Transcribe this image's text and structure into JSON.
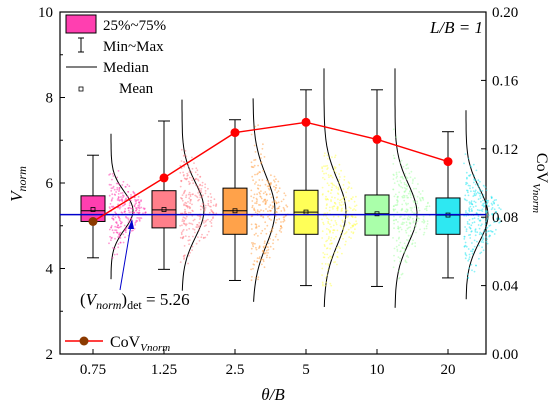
{
  "chart_data": {
    "type": "box",
    "xlabel": "θ/B",
    "ylabel": "V_norm",
    "ylabel_right": "CoV_Vnorm",
    "categories": [
      "0.75",
      "1.25",
      "2.5",
      "5",
      "10",
      "20"
    ],
    "ylim": [
      2,
      10
    ],
    "yticks": [
      2,
      4,
      6,
      8,
      10
    ],
    "ylim_right": [
      0.0,
      0.2
    ],
    "yticks_right": [
      "0.00",
      "0.04",
      "0.08",
      "0.12",
      "0.16",
      "0.20"
    ],
    "annotation_LB": "L/B = 1",
    "boxes": [
      {
        "category": "0.75",
        "min": 4.25,
        "q1": 5.1,
        "median": 5.35,
        "mean": 5.38,
        "q3": 5.7,
        "max": 6.65,
        "color": "#ff3fb0"
      },
      {
        "category": "1.25",
        "min": 3.98,
        "q1": 4.95,
        "median": 5.37,
        "mean": 5.38,
        "q3": 5.82,
        "max": 7.45,
        "color": "#ff7f8a"
      },
      {
        "category": "2.5",
        "min": 3.72,
        "q1": 4.8,
        "median": 5.35,
        "mean": 5.35,
        "q3": 5.88,
        "max": 7.48,
        "color": "#ffa24a"
      },
      {
        "category": "5",
        "min": 3.6,
        "q1": 4.8,
        "median": 5.32,
        "mean": 5.32,
        "q3": 5.83,
        "max": 8.18,
        "color": "#ffff58"
      },
      {
        "category": "10",
        "min": 3.58,
        "q1": 4.78,
        "median": 5.28,
        "mean": 5.28,
        "q3": 5.72,
        "max": 8.18,
        "color": "#aaffaa"
      },
      {
        "category": "20",
        "min": 3.78,
        "q1": 4.8,
        "median": 5.25,
        "mean": 5.25,
        "q3": 5.65,
        "max": 7.2,
        "color": "#2ee8f2"
      }
    ],
    "series": [
      {
        "name": "CoV_Vnorm",
        "axis": "right",
        "values": [
          0.0775,
          0.103,
          0.1295,
          0.1355,
          0.1255,
          0.1125
        ],
        "color": "#ff0000"
      }
    ],
    "reference_line": {
      "value": 5.26,
      "label": "(V_norm)det = 5.26",
      "color": "#0000cc"
    },
    "legend": {
      "items": [
        "25%~75%",
        "Min~Max",
        "Median",
        "Mean"
      ],
      "series_item": "CoV_Vnorm",
      "placement": "top-left"
    },
    "grid": false
  }
}
